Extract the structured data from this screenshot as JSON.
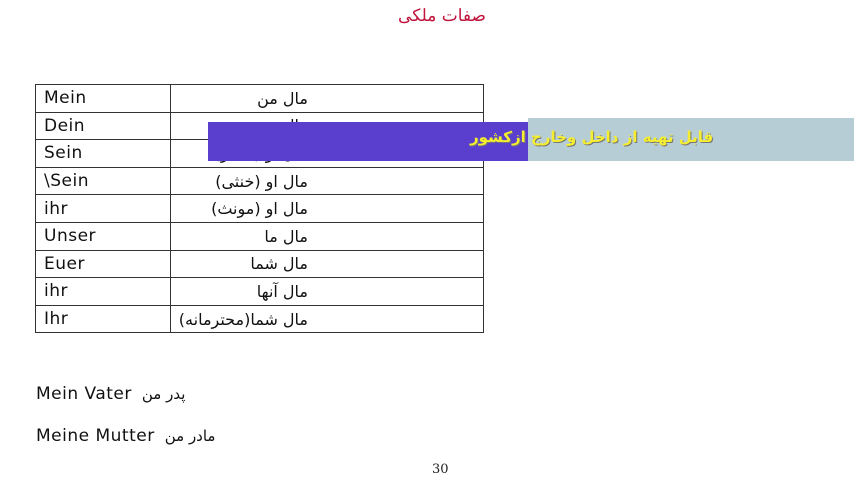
{
  "title": "صفات ملکی",
  "table": {
    "rows": [
      [
        "Mein",
        "مال من"
      ],
      [
        "Dein",
        "مال تو"
      ],
      [
        "Sein",
        "مال او (مذکر)"
      ],
      [
        "\\Sein",
        "مال او (خنثی)"
      ],
      [
        "ihr",
        "مال او (مونث)"
      ],
      [
        "Unser",
        "مال ما"
      ],
      [
        "Euer",
        "مال شما"
      ],
      [
        "ihr",
        "مال آنها"
      ],
      [
        "Ihr",
        "مال شما(محترمانه)"
      ]
    ]
  },
  "examples": [
    {
      "german": "Mein Vater",
      "persian": "پدر من"
    },
    {
      "german": "Meine Mutter",
      "persian": "مادر من"
    }
  ],
  "banner": {
    "text": "قابل تهیه از داخل وخارج ازکشور"
  },
  "page_number": 30
}
